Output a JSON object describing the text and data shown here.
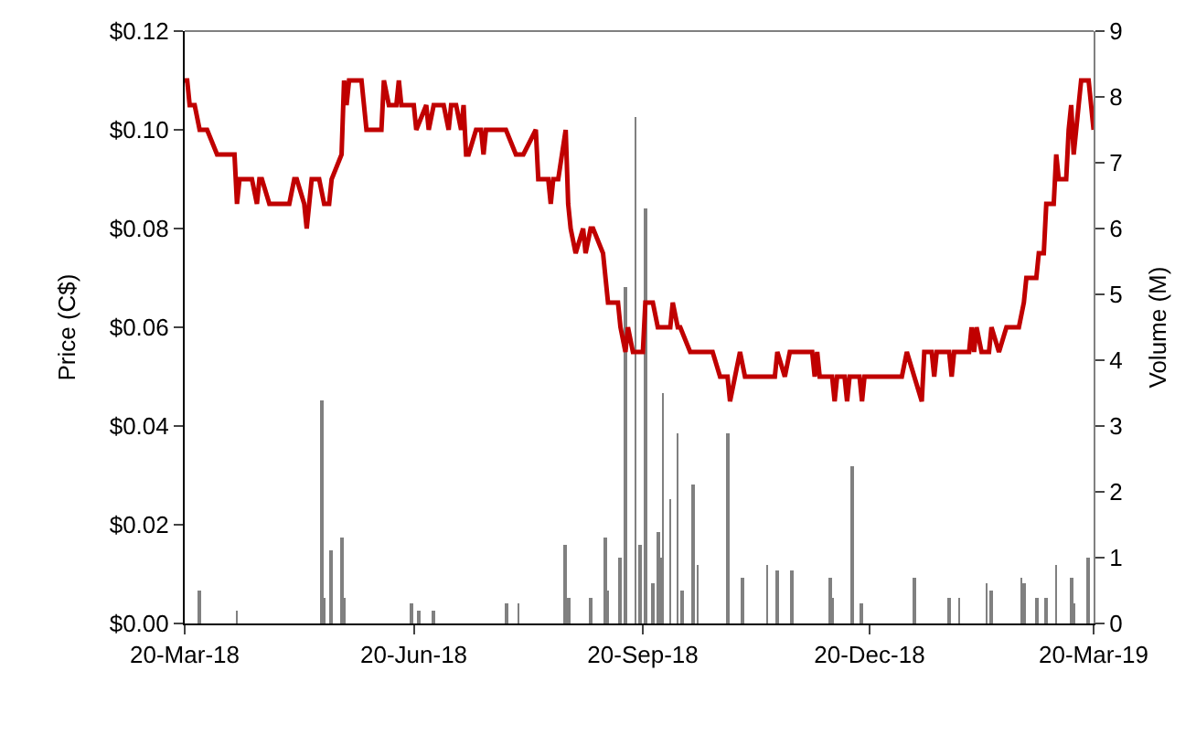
{
  "chart_data": {
    "type": "line",
    "xlabel": null,
    "ylabel": "Price (C$)",
    "y2label": "Volume (M)",
    "xlim": [
      "2018-03-20",
      "2019-03-20"
    ],
    "xticks": [
      {
        "value": "2018-03-20",
        "label": "20-Mar-18"
      },
      {
        "value": "2018-06-20",
        "label": "20-Jun-18"
      },
      {
        "value": "2018-09-20",
        "label": "20-Sep-18"
      },
      {
        "value": "2018-12-20",
        "label": "20-Dec-18"
      },
      {
        "value": "2019-03-20",
        "label": "20-Mar-19"
      }
    ],
    "ylim": [
      0,
      0.12
    ],
    "yticks": [
      {
        "value": 0,
        "label": "$0.00"
      },
      {
        "value": 0.02,
        "label": "$0.02"
      },
      {
        "value": 0.04,
        "label": "$0.04"
      },
      {
        "value": 0.06,
        "label": "$0.06"
      },
      {
        "value": 0.08,
        "label": "$0.08"
      },
      {
        "value": 0.1,
        "label": "$0.10"
      },
      {
        "value": 0.12,
        "label": "$0.12"
      }
    ],
    "y2lim": [
      0,
      9
    ],
    "y2ticks": [
      0,
      1,
      2,
      3,
      4,
      5,
      6,
      7,
      8,
      9
    ],
    "series": [
      {
        "type": "bar",
        "axis": "y2",
        "color": "#808080",
        "x": [
          "2018-03-26",
          "2018-04-10",
          "2018-05-14",
          "2018-05-15",
          "2018-05-18",
          "2018-05-22",
          "2018-05-23",
          "2018-06-19",
          "2018-06-22",
          "2018-06-28",
          "2018-07-27",
          "2018-08-01",
          "2018-08-20",
          "2018-08-21",
          "2018-08-30",
          "2018-09-05",
          "2018-09-06",
          "2018-09-11",
          "2018-09-13",
          "2018-09-17",
          "2018-09-19",
          "2018-09-21",
          "2018-09-24",
          "2018-09-26",
          "2018-09-27",
          "2018-09-28",
          "2018-10-01",
          "2018-10-04",
          "2018-10-06",
          "2018-10-10",
          "2018-10-12",
          "2018-10-24",
          "2018-10-30",
          "2018-11-09",
          "2018-11-13",
          "2018-11-19",
          "2018-12-04",
          "2018-12-05",
          "2018-12-13",
          "2018-12-17",
          "2019-01-07",
          "2019-01-21",
          "2019-01-25",
          "2019-02-05",
          "2019-02-07",
          "2019-02-19",
          "2019-02-20",
          "2019-02-25",
          "2019-03-01",
          "2019-03-05",
          "2019-03-11",
          "2019-03-12",
          "2019-03-18"
        ],
        "values": [
          0.5,
          0.2,
          3.4,
          0.4,
          1.1,
          1.3,
          0.4,
          0.3,
          0.2,
          0.2,
          0.3,
          0.3,
          1.2,
          0.4,
          0.4,
          1.3,
          0.5,
          1.0,
          5.1,
          7.7,
          1.2,
          6.3,
          0.6,
          1.4,
          1.0,
          3.5,
          1.9,
          2.9,
          0.5,
          2.1,
          0.9,
          2.9,
          0.7,
          0.9,
          0.8,
          0.8,
          0.7,
          0.4,
          2.4,
          0.3,
          0.7,
          0.4,
          0.4,
          0.6,
          0.5,
          0.7,
          0.6,
          0.4,
          0.4,
          0.9,
          0.7,
          0.3,
          1.0
        ]
      },
      {
        "axis": "y",
        "color": "#c00000",
        "marker": "none",
        "line_style": "solid",
        "x": [
          "2018-03-20",
          "2018-03-21",
          "2018-03-22",
          "2018-03-24",
          "2018-03-26",
          "2018-03-29",
          "2018-04-02",
          "2018-04-09",
          "2018-04-10",
          "2018-04-11",
          "2018-04-16",
          "2018-04-18",
          "2018-04-19",
          "2018-04-20",
          "2018-04-23",
          "2018-05-01",
          "2018-05-03",
          "2018-05-04",
          "2018-05-07",
          "2018-05-08",
          "2018-05-10",
          "2018-05-13",
          "2018-05-15",
          "2018-05-17",
          "2018-05-18",
          "2018-05-22",
          "2018-05-23",
          "2018-05-24",
          "2018-05-25",
          "2018-05-30",
          "2018-06-01",
          "2018-06-07",
          "2018-06-08",
          "2018-06-10",
          "2018-06-13",
          "2018-06-14",
          "2018-06-15",
          "2018-06-20",
          "2018-06-21",
          "2018-06-25",
          "2018-06-26",
          "2018-06-28",
          "2018-07-02",
          "2018-07-04",
          "2018-07-05",
          "2018-07-07",
          "2018-07-09",
          "2018-07-10",
          "2018-07-11",
          "2018-07-12",
          "2018-07-15",
          "2018-07-17",
          "2018-07-18",
          "2018-07-19",
          "2018-07-22",
          "2018-07-27",
          "2018-07-31",
          "2018-08-03",
          "2018-08-08",
          "2018-08-09",
          "2018-08-13",
          "2018-08-14",
          "2018-08-15",
          "2018-08-17",
          "2018-08-20",
          "2018-08-21",
          "2018-08-22",
          "2018-08-24",
          "2018-08-27",
          "2018-08-28",
          "2018-08-30",
          "2018-08-31",
          "2018-09-04",
          "2018-09-06",
          "2018-09-10",
          "2018-09-11",
          "2018-09-13",
          "2018-09-14",
          "2018-09-16",
          "2018-09-20",
          "2018-09-21",
          "2018-09-24",
          "2018-09-26",
          "2018-10-01",
          "2018-10-02",
          "2018-10-04",
          "2018-10-05",
          "2018-10-09",
          "2018-10-18",
          "2018-10-21",
          "2018-10-24",
          "2018-10-25",
          "2018-10-27",
          "2018-10-29",
          "2018-10-31",
          "2018-11-12",
          "2018-11-13",
          "2018-11-16",
          "2018-11-18",
          "2018-11-24",
          "2018-11-27",
          "2018-11-28",
          "2018-11-29",
          "2018-11-30",
          "2018-12-05",
          "2018-12-06",
          "2018-12-07",
          "2018-12-10",
          "2018-12-11",
          "2018-12-12",
          "2018-12-16",
          "2018-12-17",
          "2018-12-18",
          "2019-01-02",
          "2019-01-04",
          "2019-01-07",
          "2019-01-10",
          "2019-01-11",
          "2019-01-14",
          "2019-01-15",
          "2019-01-16",
          "2019-01-21",
          "2019-01-22",
          "2019-01-23",
          "2019-01-29",
          "2019-01-30",
          "2019-01-31",
          "2019-02-01",
          "2019-02-03",
          "2019-02-06",
          "2019-02-07",
          "2019-02-10",
          "2019-02-13",
          "2019-02-18",
          "2019-02-20",
          "2019-02-21",
          "2019-02-25",
          "2019-02-26",
          "2019-02-28",
          "2019-03-01",
          "2019-03-04",
          "2019-03-05",
          "2019-03-06",
          "2019-03-09",
          "2019-03-10",
          "2019-03-11",
          "2019-03-12",
          "2019-03-14",
          "2019-03-15",
          "2019-03-18",
          "2019-03-20"
        ],
        "values": [
          0.11,
          0.11,
          0.105,
          0.105,
          0.1,
          0.1,
          0.095,
          0.095,
          0.085,
          0.09,
          0.09,
          0.085,
          0.09,
          0.09,
          0.085,
          0.085,
          0.09,
          0.09,
          0.085,
          0.08,
          0.09,
          0.09,
          0.085,
          0.085,
          0.09,
          0.095,
          0.11,
          0.105,
          0.11,
          0.11,
          0.1,
          0.1,
          0.11,
          0.105,
          0.105,
          0.11,
          0.105,
          0.105,
          0.1,
          0.105,
          0.1,
          0.105,
          0.105,
          0.1,
          0.105,
          0.105,
          0.1,
          0.105,
          0.095,
          0.095,
          0.1,
          0.1,
          0.095,
          0.1,
          0.1,
          0.1,
          0.095,
          0.095,
          0.1,
          0.09,
          0.09,
          0.085,
          0.09,
          0.09,
          0.1,
          0.085,
          0.08,
          0.075,
          0.08,
          0.075,
          0.08,
          0.08,
          0.075,
          0.065,
          0.065,
          0.06,
          0.055,
          0.06,
          0.055,
          0.055,
          0.065,
          0.065,
          0.06,
          0.06,
          0.065,
          0.06,
          0.06,
          0.055,
          0.055,
          0.05,
          0.05,
          0.045,
          0.05,
          0.055,
          0.05,
          0.05,
          0.055,
          0.05,
          0.055,
          0.055,
          0.055,
          0.05,
          0.055,
          0.05,
          0.05,
          0.045,
          0.05,
          0.05,
          0.045,
          0.05,
          0.05,
          0.045,
          0.05,
          0.05,
          0.055,
          0.05,
          0.045,
          0.055,
          0.055,
          0.05,
          0.055,
          0.055,
          0.05,
          0.055,
          0.055,
          0.06,
          0.055,
          0.06,
          0.055,
          0.055,
          0.06,
          0.055,
          0.06,
          0.06,
          0.065,
          0.07,
          0.07,
          0.075,
          0.075,
          0.085,
          0.085,
          0.095,
          0.09,
          0.09,
          0.1,
          0.105,
          0.095,
          0.105,
          0.11,
          0.11,
          0.1
        ]
      }
    ]
  }
}
